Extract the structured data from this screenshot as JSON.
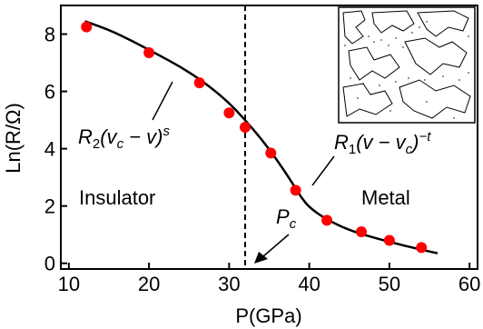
{
  "chart_data": {
    "type": "scatter",
    "xlabel": "P(GPa)",
    "ylabel": "Ln(R/Ω)",
    "xlim": [
      9,
      61
    ],
    "ylim": [
      -0.2,
      9.0
    ],
    "x_ticks": [
      10,
      20,
      30,
      40,
      50,
      60
    ],
    "y_ticks": [
      0,
      2,
      4,
      6,
      8
    ],
    "grid": false,
    "legend": "none",
    "points": [
      {
        "x": 12.2,
        "y": 8.25
      },
      {
        "x": 20.0,
        "y": 7.35
      },
      {
        "x": 26.3,
        "y": 6.3
      },
      {
        "x": 30.0,
        "y": 5.25
      },
      {
        "x": 32.0,
        "y": 4.75
      },
      {
        "x": 35.2,
        "y": 3.85
      },
      {
        "x": 38.3,
        "y": 2.55
      },
      {
        "x": 42.2,
        "y": 1.5
      },
      {
        "x": 46.5,
        "y": 1.1
      },
      {
        "x": 50.0,
        "y": 0.8
      },
      {
        "x": 54.0,
        "y": 0.55
      }
    ],
    "fit_curve": [
      [
        12,
        8.45
      ],
      [
        15,
        8.15
      ],
      [
        18,
        7.75
      ],
      [
        21,
        7.3
      ],
      [
        24,
        6.85
      ],
      [
        27,
        6.3
      ],
      [
        30,
        5.6
      ],
      [
        32,
        5.0
      ],
      [
        34,
        4.35
      ],
      [
        36,
        3.6
      ],
      [
        38,
        2.75
      ],
      [
        39,
        2.3
      ],
      [
        40,
        1.95
      ],
      [
        42,
        1.55
      ],
      [
        45,
        1.15
      ],
      [
        48,
        0.9
      ],
      [
        52,
        0.6
      ],
      [
        56,
        0.35
      ]
    ],
    "critical_pressure": 32,
    "annotations": {
      "insulator": "Insulator",
      "metal": "Metal",
      "pc": {
        "main": "P",
        "sub": "c"
      },
      "formula_left": {
        "R": "R",
        "R_sub": "2",
        "open": "(v",
        "vsub": "c",
        "minus": " − v)",
        "exp": "s"
      },
      "formula_right": {
        "R": "R",
        "R_sub": "1",
        "open": "(v − v",
        "vsub": "c",
        "close": ")",
        "exp": "−t"
      }
    },
    "colors": {
      "marker": "#ff0000",
      "curve": "#000000",
      "axis": "#000000"
    }
  }
}
